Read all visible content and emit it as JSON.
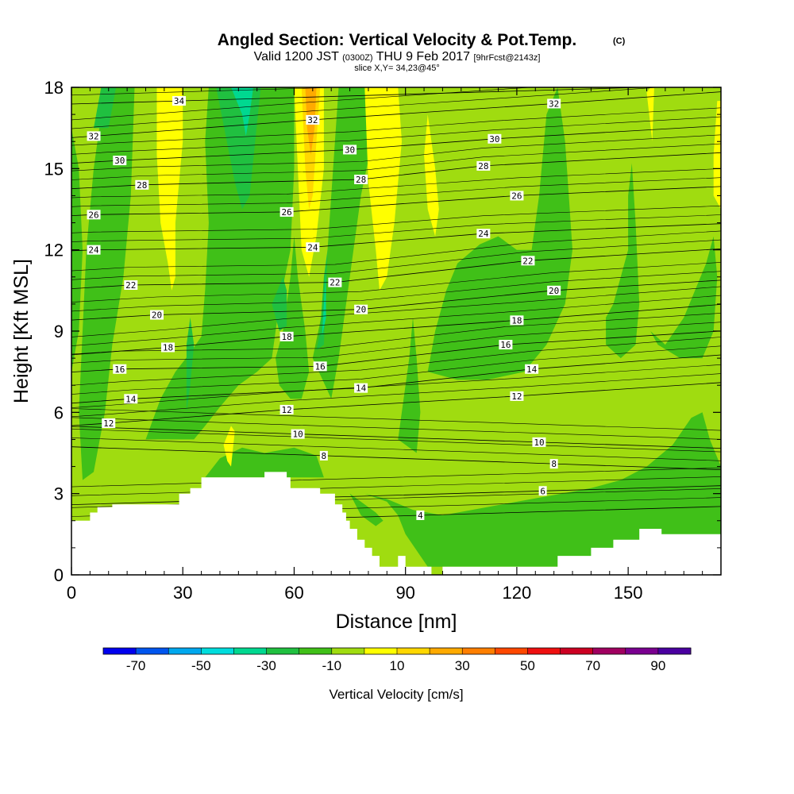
{
  "chart_data": {
    "type": "heatmap",
    "title": "Angled Section: Vertical Velocity & Pot.Temp.",
    "title_mark": "(C)",
    "subtitle_parts": [
      "Valid 1200 JST",
      "(0300Z)",
      "THU 9 Feb 2017",
      "[9hrFcst@2143z]"
    ],
    "slice_label": "slice X,Y= 34,23@45°",
    "xlabel": "Distance [nm]",
    "ylabel": "Height [Kft MSL]",
    "xlim": [
      0,
      175
    ],
    "ylim": [
      0,
      18
    ],
    "xticks": [
      0,
      30,
      60,
      90,
      120,
      150
    ],
    "yticks": [
      0,
      3,
      6,
      9,
      12,
      15,
      18
    ],
    "colorbar": {
      "label": "Vertical Velocity [cm/s]",
      "range": [
        -80,
        100
      ],
      "tick_values": [
        -70,
        -50,
        -30,
        -10,
        10,
        30,
        50,
        70,
        90
      ],
      "tick_labels": [
        "-70",
        "-50",
        "-30",
        "-10",
        "10",
        "30",
        "50",
        "70",
        "90"
      ],
      "colors": [
        "#0000ee",
        "#0055ee",
        "#00a8ee",
        "#00dddd",
        "#00d890",
        "#20c040",
        "#40c018",
        "#a0dc10",
        "#ffff00",
        "#ffd700",
        "#ffaa00",
        "#ff7f00",
        "#ff4800",
        "#ee1010",
        "#cc0022",
        "#a00060",
        "#7a0090",
        "#4a00a0"
      ]
    },
    "field_colors": {
      "background": "#a0dc10",
      "moderate_sink": "#40c018",
      "strong_sink": "#20c040",
      "very_strong_sink": "#00d890",
      "weak_rise": "#ffff00",
      "moderate_rise": "#ffd700",
      "strong_rise": "#ffaa00"
    },
    "terrain": [
      [
        0,
        2.0
      ],
      [
        5,
        2.0
      ],
      [
        5,
        2.3
      ],
      [
        7,
        2.3
      ],
      [
        7,
        2.5
      ],
      [
        11,
        2.5
      ],
      [
        11,
        2.6
      ],
      [
        29,
        2.6
      ],
      [
        29,
        3.0
      ],
      [
        32,
        3.0
      ],
      [
        32,
        3.2
      ],
      [
        35,
        3.2
      ],
      [
        35,
        3.6
      ],
      [
        52,
        3.6
      ],
      [
        52,
        3.8
      ],
      [
        58,
        3.8
      ],
      [
        58,
        3.6
      ],
      [
        59,
        3.6
      ],
      [
        59,
        3.2
      ],
      [
        67,
        3.2
      ],
      [
        67,
        3.0
      ],
      [
        71,
        3.0
      ],
      [
        71,
        2.6
      ],
      [
        73,
        2.6
      ],
      [
        73,
        2.3
      ],
      [
        74,
        2.3
      ],
      [
        74,
        2.0
      ],
      [
        75,
        2.0
      ],
      [
        75,
        1.7
      ],
      [
        77,
        1.7
      ],
      [
        77,
        1.3
      ],
      [
        79,
        1.3
      ],
      [
        79,
        1.0
      ],
      [
        81,
        1.0
      ],
      [
        81,
        0.7
      ],
      [
        83,
        0.7
      ],
      [
        83,
        0.3
      ],
      [
        88,
        0.3
      ],
      [
        88,
        0.7
      ],
      [
        90,
        0.7
      ],
      [
        90,
        0.3
      ],
      [
        97,
        0.3
      ],
      [
        97,
        0
      ],
      [
        100,
        0
      ],
      [
        100,
        0.3
      ],
      [
        131,
        0.3
      ],
      [
        131,
        0.7
      ],
      [
        140,
        0.7
      ],
      [
        140,
        1.0
      ],
      [
        146,
        1.0
      ],
      [
        146,
        1.3
      ],
      [
        153,
        1.3
      ],
      [
        153,
        1.7
      ],
      [
        159,
        1.7
      ],
      [
        159,
        1.5
      ],
      [
        175,
        1.5
      ]
    ],
    "theta_labels": [
      {
        "v": "4",
        "x": 94,
        "y": 2.2
      },
      {
        "v": "6",
        "x": 127,
        "y": 3.1
      },
      {
        "v": "8",
        "x": 68,
        "y": 4.4
      },
      {
        "v": "8",
        "x": 130,
        "y": 4.1
      },
      {
        "v": "10",
        "x": 61,
        "y": 5.2
      },
      {
        "v": "10",
        "x": 126,
        "y": 4.9
      },
      {
        "v": "12",
        "x": 10,
        "y": 5.6
      },
      {
        "v": "12",
        "x": 58,
        "y": 6.1
      },
      {
        "v": "12",
        "x": 120,
        "y": 6.6
      },
      {
        "v": "14",
        "x": 16,
        "y": 6.5
      },
      {
        "v": "14",
        "x": 78,
        "y": 6.9
      },
      {
        "v": "14",
        "x": 124,
        "y": 7.6
      },
      {
        "v": "16",
        "x": 13,
        "y": 7.6
      },
      {
        "v": "16",
        "x": 67,
        "y": 7.7
      },
      {
        "v": "16",
        "x": 117,
        "y": 8.5
      },
      {
        "v": "18",
        "x": 26,
        "y": 8.4
      },
      {
        "v": "18",
        "x": 58,
        "y": 8.8
      },
      {
        "v": "18",
        "x": 120,
        "y": 9.4
      },
      {
        "v": "20",
        "x": 23,
        "y": 9.6
      },
      {
        "v": "20",
        "x": 78,
        "y": 9.8
      },
      {
        "v": "20",
        "x": 130,
        "y": 10.5
      },
      {
        "v": "22",
        "x": 16,
        "y": 10.7
      },
      {
        "v": "22",
        "x": 71,
        "y": 10.8
      },
      {
        "v": "22",
        "x": 123,
        "y": 11.6
      },
      {
        "v": "24",
        "x": 6,
        "y": 12.0
      },
      {
        "v": "24",
        "x": 65,
        "y": 12.1
      },
      {
        "v": "24",
        "x": 111,
        "y": 12.6
      },
      {
        "v": "26",
        "x": 6,
        "y": 13.3
      },
      {
        "v": "26",
        "x": 58,
        "y": 13.4
      },
      {
        "v": "26",
        "x": 120,
        "y": 14.0
      },
      {
        "v": "28",
        "x": 19,
        "y": 14.4
      },
      {
        "v": "28",
        "x": 78,
        "y": 14.6
      },
      {
        "v": "28",
        "x": 111,
        "y": 15.1
      },
      {
        "v": "30",
        "x": 13,
        "y": 15.3
      },
      {
        "v": "30",
        "x": 75,
        "y": 15.7
      },
      {
        "v": "30",
        "x": 114,
        "y": 16.1
      },
      {
        "v": "32",
        "x": 6,
        "y": 16.2
      },
      {
        "v": "32",
        "x": 65,
        "y": 16.8
      },
      {
        "v": "32",
        "x": 130,
        "y": 17.4
      },
      {
        "v": "34",
        "x": 29,
        "y": 17.5
      }
    ]
  }
}
